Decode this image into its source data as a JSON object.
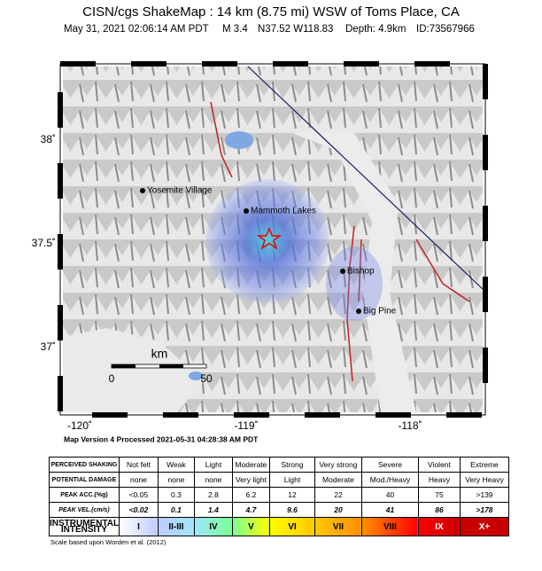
{
  "header": {
    "title": "CISN/cgs ShakeMap : 14 km (8.75 mi) WSW of Toms Place, CA",
    "event": {
      "time": "May 31, 2021 02:06:14 AM PDT",
      "magnitude": "M 3.4",
      "location": "N37.52 W118.83",
      "depth": "Depth: 4.9km",
      "id": "ID:73567966"
    }
  },
  "map": {
    "places": [
      "Yosemite Village",
      "Mammoth Lakes",
      "Bishop",
      "Big Pine"
    ],
    "lat_labels": [
      "38˚",
      "37.5˚",
      "37˚"
    ],
    "lon_labels": [
      "-120˚",
      "-119˚",
      "-118˚"
    ],
    "scale_bar": {
      "unit": "km",
      "start": "0",
      "end": "50"
    }
  },
  "footer": "Map Version 4 Processed 2021-05-31 04:28:38 AM PDT",
  "legend": {
    "rows": [
      {
        "label": "PERCEIVED SHAKING",
        "cells": [
          "Not felt",
          "Weak",
          "Light",
          "Moderate",
          "Strong",
          "Very strong",
          "Severe",
          "Violent",
          "Extreme"
        ]
      },
      {
        "label": "POTENTIAL DAMAGE",
        "cells": [
          "none",
          "none",
          "none",
          "Very light",
          "Light",
          "Moderate",
          "Mod./Heavy",
          "Heavy",
          "Very Heavy"
        ]
      },
      {
        "label": "PEAK ACC.(%g)",
        "cells": [
          "<0.05",
          "0.3",
          "2.8",
          "6.2",
          "12",
          "22",
          "40",
          "75",
          ">139"
        ]
      },
      {
        "label": "PEAK VEL.(cm/s)",
        "cells": [
          "<0.02",
          "0.1",
          "1.4",
          "4.7",
          "9.6",
          "20",
          "41",
          "86",
          ">178"
        ]
      },
      {
        "label": "INSTRUMENTAL INTENSITY",
        "cells": [
          "I",
          "II-III",
          "IV",
          "V",
          "VI",
          "VII",
          "VIII",
          "IX",
          "X+"
        ]
      }
    ],
    "note": "Scale based upon Worden et al. (2012)"
  }
}
